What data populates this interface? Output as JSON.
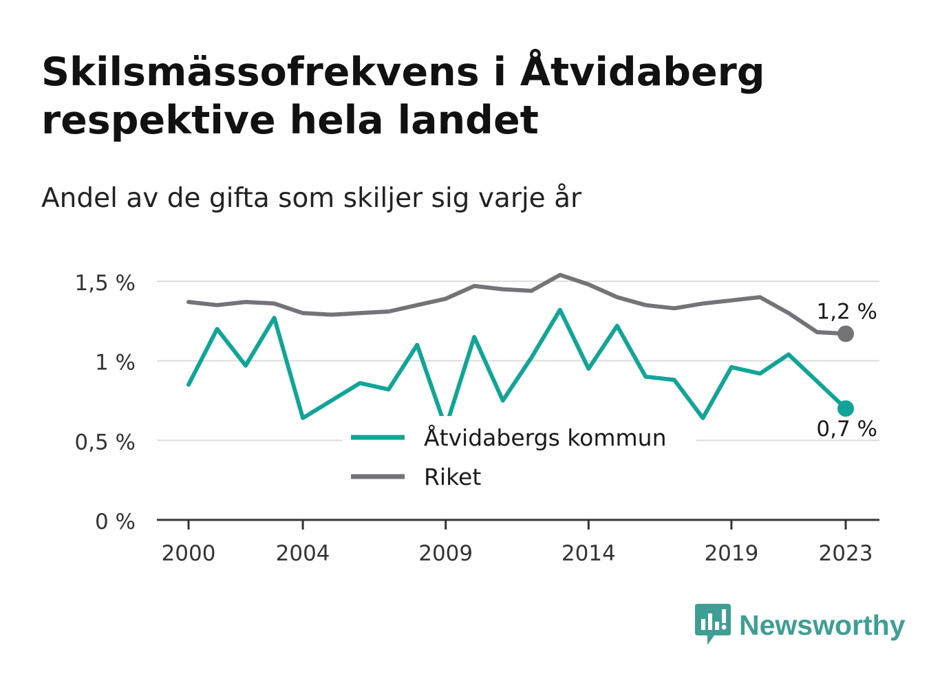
{
  "title_lines": [
    "Skilsmässofrekvens i Åtvidaberg",
    "respektive hela landet"
  ],
  "subtitle": "Andel av de gifta som skiljer sig varje år",
  "logo": {
    "text": "Newsworthy",
    "icon": "newsworthy-bar-chart-icon",
    "color": "#3f9e93"
  },
  "chart_data": {
    "type": "line",
    "x": [
      2000,
      2001,
      2002,
      2003,
      2004,
      2005,
      2006,
      2007,
      2008,
      2009,
      2010,
      2011,
      2012,
      2013,
      2014,
      2015,
      2016,
      2017,
      2018,
      2019,
      2020,
      2021,
      2022,
      2023
    ],
    "series": [
      {
        "name": "Åtvidabergs kommun",
        "color": "#12a597",
        "values": [
          0.85,
          1.2,
          0.97,
          1.27,
          0.64,
          0.75,
          0.86,
          0.82,
          1.1,
          0.58,
          1.15,
          0.75,
          1.02,
          1.32,
          0.95,
          1.22,
          0.9,
          0.88,
          0.64,
          0.96,
          0.92,
          1.04,
          0.87,
          0.7
        ],
        "end_label": "0,7 %"
      },
      {
        "name": "Riket",
        "color": "#737378",
        "values": [
          1.37,
          1.35,
          1.37,
          1.36,
          1.3,
          1.29,
          1.3,
          1.31,
          1.35,
          1.39,
          1.47,
          1.45,
          1.44,
          1.54,
          1.48,
          1.4,
          1.35,
          1.33,
          1.36,
          1.38,
          1.4,
          1.3,
          1.18,
          1.17
        ],
        "end_label": "1,2 %"
      }
    ],
    "ylim": [
      0,
      1.5
    ],
    "yticks": [
      {
        "value": 0,
        "label": "0 %"
      },
      {
        "value": 0.5,
        "label": "0,5 %"
      },
      {
        "value": 1,
        "label": "1 %"
      },
      {
        "value": 1.5,
        "label": "1,5 %"
      }
    ],
    "xticks": [
      {
        "value": 2000,
        "label": "2000"
      },
      {
        "value": 2004,
        "label": "2004"
      },
      {
        "value": 2009,
        "label": "2009"
      },
      {
        "value": 2014,
        "label": "2014"
      },
      {
        "value": 2019,
        "label": "2019"
      },
      {
        "value": 2023,
        "label": "2023"
      }
    ],
    "grid": true,
    "legend": "center-bottom"
  }
}
